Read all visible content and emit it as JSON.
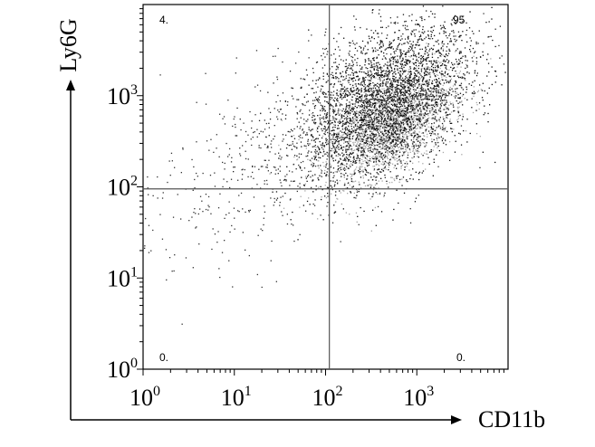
{
  "chart_data": {
    "type": "scatter",
    "title": "",
    "xlabel": "CD11b",
    "ylabel": "Ly6G",
    "x_scale": "log",
    "y_scale": "log",
    "xlim": [
      1,
      10000
    ],
    "ylim": [
      1,
      10000
    ],
    "x_ticks": [
      {
        "base": "10",
        "exp": "0",
        "value": 1
      },
      {
        "base": "10",
        "exp": "1",
        "value": 10
      },
      {
        "base": "10",
        "exp": "2",
        "value": 100
      },
      {
        "base": "10",
        "exp": "3",
        "value": 1000
      }
    ],
    "y_ticks": [
      {
        "base": "10",
        "exp": "0",
        "value": 1
      },
      {
        "base": "10",
        "exp": "1",
        "value": 10
      },
      {
        "base": "10",
        "exp": "2",
        "value": 100
      },
      {
        "base": "10",
        "exp": "3",
        "value": 1000
      }
    ],
    "gate": {
      "x": 110,
      "y": 95
    },
    "quadrants": [
      {
        "position": "top-left",
        "label": "4."
      },
      {
        "position": "top-right",
        "label": "95."
      },
      {
        "position": "bottom-left",
        "label": "0."
      },
      {
        "position": "bottom-right",
        "label": "0."
      }
    ],
    "clusters": [
      {
        "center": [
          500,
          500
        ],
        "spread": [
          0.35,
          0.3
        ],
        "count": 2000,
        "color": "#a8a8a8"
      },
      {
        "center": [
          500,
          700
        ],
        "spread": [
          0.45,
          0.4
        ],
        "count": 2600,
        "color": "#111111"
      },
      {
        "center": [
          350,
          1500
        ],
        "spread": [
          0.5,
          0.35
        ],
        "count": 900,
        "color": "#222222"
      },
      {
        "center": [
          40,
          250
        ],
        "spread": [
          0.9,
          0.55
        ],
        "count": 650,
        "color": "#333333"
      }
    ],
    "grid": false,
    "legend": "none"
  }
}
